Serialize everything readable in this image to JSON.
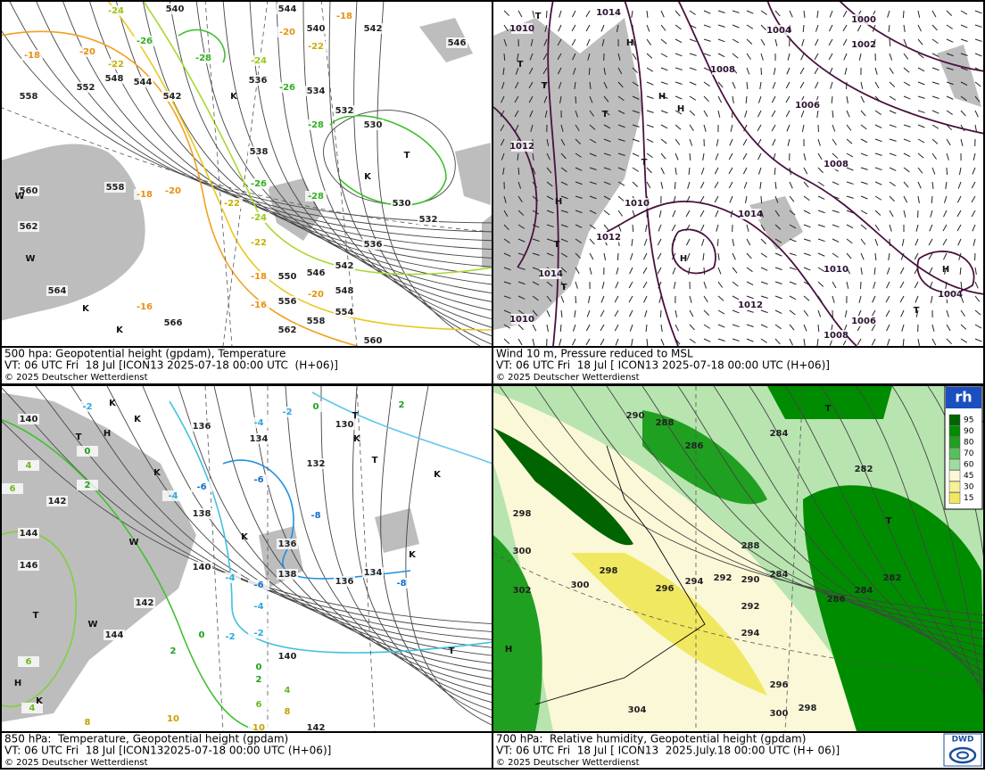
{
  "panels": [
    {
      "caption": [
        "500 hpa: Geopotential height (gpdam), Temperature",
        "VT: 06 UTC Fri  18 Jul [ICON13 2025-07-18 00:00 UTC  (H+06)]",
        "© 2025 Deutscher Wetterdienst"
      ],
      "height_labels": [
        540,
        544,
        540,
        542,
        546,
        558,
        552,
        548,
        544,
        542,
        536,
        534,
        532,
        530,
        538,
        530,
        532,
        536,
        542,
        546,
        548,
        550,
        554,
        556,
        558,
        562,
        560,
        566,
        558,
        560,
        562,
        564
      ],
      "temperature_labels": [
        -24,
        -26,
        -28,
        -20,
        -22,
        -18,
        -24,
        -26,
        -28,
        -26,
        -28,
        -24,
        -22,
        -20,
        -18,
        -16,
        -16,
        -18,
        -20,
        -22,
        -18,
        -20,
        -22
      ],
      "markers": [
        "K",
        "T",
        "K",
        "W",
        "W",
        "K",
        "K"
      ]
    },
    {
      "caption": [
        "Wind 10 m, Pressure reduced to MSL",
        "VT: 06 UTC Fri  18 Jul [ ICON13 2025-07-18 00:00 UTC (H+06)]",
        "© 2025 Deutscher Wetterdienst"
      ],
      "pressure_labels": [
        1014,
        1010,
        1004,
        1000,
        1002,
        1008,
        1006,
        1012,
        1008,
        1010,
        1014,
        1012,
        1014,
        1010,
        1004,
        1012,
        1010,
        1006,
        1008
      ],
      "markers": [
        "T",
        "H",
        "T",
        "T",
        "H",
        "H",
        "T",
        "T",
        "H",
        "H",
        "T",
        "T",
        "H",
        "T"
      ]
    },
    {
      "caption": [
        "850 hPa:  Temperature, Geopotential height (gpdam)",
        "VT: 06 UTC Fri  18 Jul [ICON132025-07-18 00:00 UTC (H+06)]",
        "© 2025 Deutscher Wetterdienst"
      ],
      "height_labels": [
        140,
        134,
        130,
        132,
        136,
        138,
        136,
        134,
        136,
        138,
        140,
        142,
        144,
        146,
        142,
        144,
        140,
        142
      ],
      "temperature_labels": [
        -2,
        0,
        2,
        -2,
        -4,
        0,
        4,
        2,
        6,
        -4,
        -6,
        -6,
        -8,
        -8,
        -4,
        -6,
        -4,
        -2,
        -2,
        0,
        2,
        0,
        2,
        4,
        6,
        8,
        6,
        4,
        8,
        10,
        10
      ],
      "markers": [
        "K",
        "K",
        "T",
        "H",
        "T",
        "W",
        "K",
        "K",
        "K",
        "K",
        "K",
        "T",
        "T",
        "W",
        "H",
        "K",
        "T"
      ]
    },
    {
      "caption": [
        "700 hPa:  Relative humidity, Geopotential height (gpdam)",
        "VT: 06 UTC Fri  18 Jul [ ICON13  2025.July.18 00:00 UTC (H+ 06)]",
        "© 2025 Deutscher Wetterdienst"
      ],
      "height_labels": [
        290,
        288,
        286,
        284,
        282,
        298,
        300,
        302,
        288,
        290,
        292,
        294,
        296,
        298,
        300,
        284,
        292,
        294,
        286,
        284,
        282,
        296,
        298,
        300,
        304
      ],
      "markers": [
        "T",
        "H",
        "T"
      ]
    }
  ],
  "legend": {
    "title": "rh",
    "levels": [
      95,
      90,
      80,
      70,
      60,
      45,
      30,
      15
    ]
  },
  "logo": "DWD"
}
